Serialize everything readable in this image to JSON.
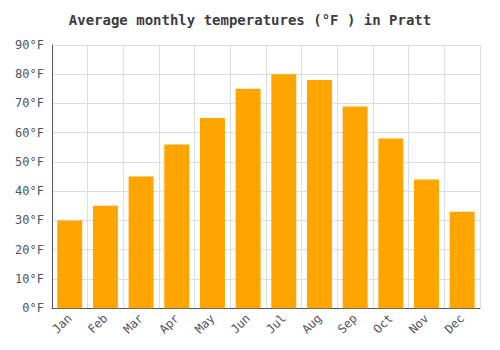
{
  "chart_data": {
    "type": "bar",
    "title": "Average monthly temperatures (°F ) in Pratt",
    "categories": [
      "Jan",
      "Feb",
      "Mar",
      "Apr",
      "May",
      "Jun",
      "Jul",
      "Aug",
      "Sep",
      "Oct",
      "Nov",
      "Dec"
    ],
    "values": [
      30,
      35,
      45,
      56,
      65,
      75,
      80,
      78,
      69,
      58,
      44,
      33
    ],
    "color": "#FFA500",
    "ylim": [
      0,
      90
    ],
    "yticks": [
      {
        "value": 0,
        "label": "0°F"
      },
      {
        "value": 10,
        "label": "10°F"
      },
      {
        "value": 20,
        "label": "20°F"
      },
      {
        "value": 30,
        "label": "30°F"
      },
      {
        "value": 40,
        "label": "40°F"
      },
      {
        "value": 50,
        "label": "50°F"
      },
      {
        "value": 60,
        "label": "60°F"
      },
      {
        "value": 70,
        "label": "70°F"
      },
      {
        "value": 80,
        "label": "80°F"
      },
      {
        "value": 90,
        "label": "90°F"
      }
    ],
    "grid": true
  }
}
